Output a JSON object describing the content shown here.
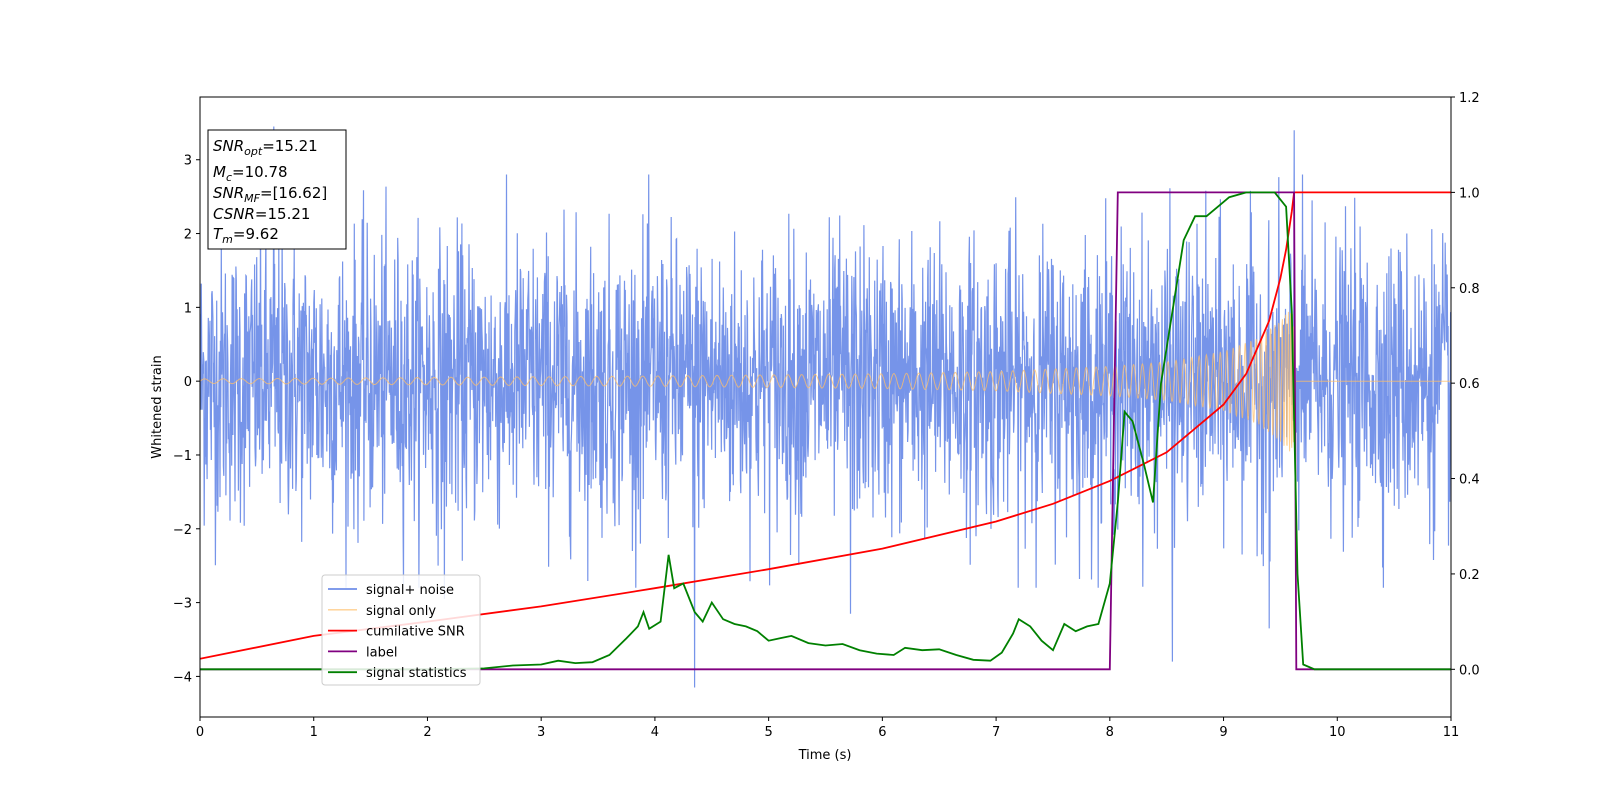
{
  "chart_data": {
    "type": "line",
    "xlabel": "Time (s)",
    "ylabel": "Whitened strain",
    "xlim": [
      0,
      11
    ],
    "ylim": [
      -4.55,
      3.85
    ],
    "y2lim": [
      -0.1,
      1.2
    ],
    "grid": false,
    "legend_placement": "lower-left",
    "x_ticks": [
      0,
      1,
      2,
      3,
      4,
      5,
      6,
      7,
      8,
      9,
      10,
      11
    ],
    "y_ticks": [
      -4,
      -3,
      -2,
      -1,
      0,
      1,
      2,
      3
    ],
    "y2_ticks": [
      0.0,
      0.2,
      0.4,
      0.6,
      0.8,
      1.0,
      1.2
    ],
    "x_tick_labels": [
      "0",
      "1",
      "2",
      "3",
      "4",
      "5",
      "6",
      "7",
      "8",
      "9",
      "10",
      "11"
    ],
    "y_tick_labels": [
      "−4",
      "−3",
      "−2",
      "−1",
      "0",
      "1",
      "2",
      "3"
    ],
    "y2_tick_labels": [
      "0.0",
      "0.2",
      "0.4",
      "0.6",
      "0.8",
      "1.0",
      "1.2"
    ],
    "annotation": {
      "snr_opt": {
        "var": "SNR",
        "sub": "opt",
        "value": "=15.21"
      },
      "mc": {
        "var": "M",
        "sub": "c",
        "value": "=10.78"
      },
      "snr_mf": {
        "var": "SNR",
        "sub": "MF",
        "value": "=[16.62]"
      },
      "csnr": {
        "var": "CSNR",
        "value": "=15.21"
      },
      "tm": {
        "var": "T",
        "sub": "m",
        "value": "=9.62"
      }
    },
    "series": [
      {
        "name": "signal+ noise",
        "axis": "left",
        "color": "#6f8ee8",
        "kind": "noise",
        "noise_sigma": 0.95,
        "noise_peak_examples": [
          [
            0.65,
            3.45
          ],
          [
            2.15,
            -2.95
          ],
          [
            4.35,
            -4.15
          ],
          [
            5.72,
            -3.15
          ],
          [
            8.55,
            -3.8
          ],
          [
            9.62,
            3.4
          ],
          [
            9.4,
            -3.35
          ]
        ]
      },
      {
        "name": "signal only",
        "axis": "left",
        "color": "#ffbf69",
        "kind": "chirp",
        "merger_time": 9.62,
        "amplitude_envelope": [
          [
            0.0,
            0.03
          ],
          [
            2.0,
            0.05
          ],
          [
            4.0,
            0.07
          ],
          [
            6.0,
            0.1
          ],
          [
            7.0,
            0.13
          ],
          [
            8.0,
            0.2
          ],
          [
            8.5,
            0.26
          ],
          [
            9.0,
            0.4
          ],
          [
            9.3,
            0.58
          ],
          [
            9.5,
            0.82
          ],
          [
            9.6,
            1.0
          ]
        ]
      },
      {
        "name": "cumilative SNR",
        "axis": "right",
        "color": "#ff0000",
        "points": [
          [
            0.0,
            0.022
          ],
          [
            1.0,
            0.07
          ],
          [
            2.0,
            0.1
          ],
          [
            3.0,
            0.132
          ],
          [
            4.0,
            0.17
          ],
          [
            5.0,
            0.21
          ],
          [
            6.0,
            0.253
          ],
          [
            7.0,
            0.31
          ],
          [
            7.5,
            0.347
          ],
          [
            8.0,
            0.395
          ],
          [
            8.5,
            0.455
          ],
          [
            9.0,
            0.555
          ],
          [
            9.2,
            0.62
          ],
          [
            9.4,
            0.73
          ],
          [
            9.5,
            0.82
          ],
          [
            9.55,
            0.88
          ],
          [
            9.6,
            0.96
          ],
          [
            9.62,
            1.0
          ],
          [
            11.0,
            1.0
          ]
        ]
      },
      {
        "name": "label",
        "axis": "right",
        "color": "#800080",
        "points": [
          [
            0.0,
            0.0
          ],
          [
            8.0,
            0.0
          ],
          [
            8.07,
            1.0
          ],
          [
            9.62,
            1.0
          ],
          [
            9.64,
            0.0
          ],
          [
            11.0,
            0.0
          ]
        ]
      },
      {
        "name": "signal statistics",
        "axis": "right",
        "color": "#008000",
        "points": [
          [
            0.0,
            0.0
          ],
          [
            2.0,
            0.0
          ],
          [
            2.5,
            0.002
          ],
          [
            2.75,
            0.008
          ],
          [
            3.0,
            0.01
          ],
          [
            3.15,
            0.018
          ],
          [
            3.3,
            0.013
          ],
          [
            3.45,
            0.015
          ],
          [
            3.6,
            0.03
          ],
          [
            3.75,
            0.065
          ],
          [
            3.85,
            0.09
          ],
          [
            3.9,
            0.12
          ],
          [
            3.95,
            0.085
          ],
          [
            4.05,
            0.1
          ],
          [
            4.12,
            0.24
          ],
          [
            4.17,
            0.17
          ],
          [
            4.25,
            0.18
          ],
          [
            4.35,
            0.12
          ],
          [
            4.42,
            0.1
          ],
          [
            4.5,
            0.14
          ],
          [
            4.6,
            0.105
          ],
          [
            4.7,
            0.095
          ],
          [
            4.8,
            0.09
          ],
          [
            4.9,
            0.08
          ],
          [
            5.0,
            0.06
          ],
          [
            5.1,
            0.065
          ],
          [
            5.2,
            0.07
          ],
          [
            5.35,
            0.055
          ],
          [
            5.5,
            0.05
          ],
          [
            5.65,
            0.053
          ],
          [
            5.8,
            0.04
          ],
          [
            5.95,
            0.033
          ],
          [
            6.1,
            0.03
          ],
          [
            6.2,
            0.045
          ],
          [
            6.35,
            0.04
          ],
          [
            6.5,
            0.042
          ],
          [
            6.65,
            0.03
          ],
          [
            6.8,
            0.02
          ],
          [
            6.95,
            0.018
          ],
          [
            7.05,
            0.035
          ],
          [
            7.15,
            0.075
          ],
          [
            7.2,
            0.105
          ],
          [
            7.3,
            0.09
          ],
          [
            7.4,
            0.06
          ],
          [
            7.5,
            0.04
          ],
          [
            7.6,
            0.095
          ],
          [
            7.7,
            0.08
          ],
          [
            7.8,
            0.09
          ],
          [
            7.9,
            0.095
          ],
          [
            8.0,
            0.18
          ],
          [
            8.07,
            0.35
          ],
          [
            8.13,
            0.54
          ],
          [
            8.2,
            0.52
          ],
          [
            8.3,
            0.43
          ],
          [
            8.38,
            0.35
          ],
          [
            8.45,
            0.6
          ],
          [
            8.55,
            0.75
          ],
          [
            8.65,
            0.9
          ],
          [
            8.75,
            0.95
          ],
          [
            8.85,
            0.95
          ],
          [
            8.95,
            0.97
          ],
          [
            9.05,
            0.99
          ],
          [
            9.2,
            1.0
          ],
          [
            9.45,
            1.0
          ],
          [
            9.55,
            0.97
          ],
          [
            9.6,
            0.75
          ],
          [
            9.65,
            0.2
          ],
          [
            9.7,
            0.01
          ],
          [
            9.8,
            0.0
          ],
          [
            11.0,
            0.0
          ]
        ]
      }
    ]
  }
}
